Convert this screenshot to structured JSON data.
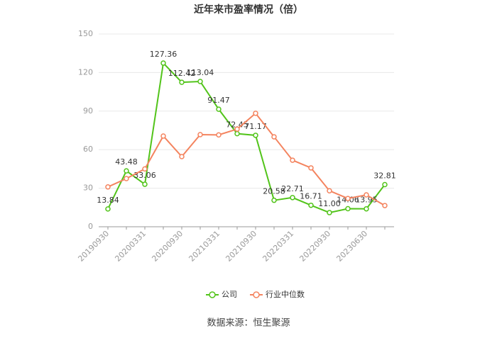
{
  "chart_data": {
    "type": "line",
    "title": "近年来市盈率情况（倍）",
    "categories": [
      "20190930",
      null,
      "20200331",
      null,
      "20200930",
      null,
      "20210331",
      null,
      "20210930",
      null,
      "20220331",
      null,
      "20220930",
      null,
      "20230630",
      null
    ],
    "series": [
      {
        "name": "公司",
        "color": "#52c41a",
        "values": [
          13.84,
          43.48,
          33.06,
          127.36,
          112.42,
          113.04,
          91.47,
          72.45,
          71.17,
          20.58,
          22.71,
          16.71,
          11.0,
          14.06,
          13.95,
          32.81
        ],
        "value_labels": [
          "13.84",
          "43.48",
          "33.06",
          "127.36",
          "112.42",
          "113.04",
          "91.47",
          "72.45",
          "71.17",
          "20.58",
          "22.71",
          "16.71",
          "11.00",
          "14.06",
          "13.95",
          "32.81"
        ]
      },
      {
        "name": "行业中位数",
        "color": "#f4845f",
        "values": [
          31,
          37.5,
          45,
          70.6,
          54.6,
          71.7,
          71.5,
          76,
          88.3,
          70,
          51.8,
          45.8,
          28,
          22,
          24.8,
          16.5
        ]
      }
    ],
    "ylim": [
      0,
      150
    ],
    "yticks": [
      0,
      30,
      60,
      90,
      120,
      150
    ],
    "grid": true,
    "legend": "bottom",
    "source": "数据来源：恒生聚源"
  }
}
